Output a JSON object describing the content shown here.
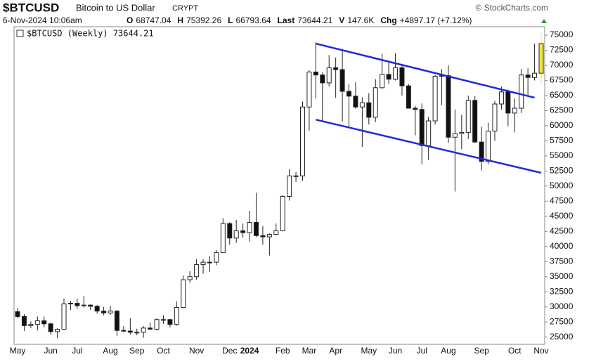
{
  "header": {
    "symbol": "$BTCUSD",
    "name": "Bitcoin to US Dollar",
    "exchange": "CRYPT",
    "source": "© StockCharts.com",
    "date": "6-Nov-2024 10:06am",
    "quote": [
      {
        "label": "O",
        "value": "68747.04"
      },
      {
        "label": "H",
        "value": "75392.26"
      },
      {
        "label": "L",
        "value": "66793.64"
      },
      {
        "label": "Last",
        "value": "73644.21"
      },
      {
        "label": "V",
        "value": "147.6K"
      },
      {
        "label": "Chg",
        "value": "+4897.17 (+7.12%)"
      }
    ],
    "legend": "$BTCUSD (Weekly) 73644.21"
  },
  "chart_data": {
    "type": "candlestick",
    "categories": [
      "May",
      null,
      null,
      null,
      null,
      "Jun",
      null,
      null,
      null,
      "Jul",
      null,
      null,
      null,
      null,
      "Aug",
      null,
      null,
      null,
      "Sep",
      null,
      null,
      null,
      "Oct",
      null,
      null,
      null,
      null,
      "Nov",
      null,
      null,
      null,
      null,
      "Dec",
      null,
      null,
      "2024",
      null,
      null,
      null,
      null,
      "Feb",
      null,
      null,
      null,
      "Mar",
      null,
      null,
      null,
      "Apr",
      null,
      null,
      null,
      null,
      "May",
      null,
      null,
      null,
      "Jun",
      null,
      null,
      null,
      "Jul",
      null,
      null,
      null,
      "Aug",
      null,
      null,
      null,
      null,
      "Sep",
      null,
      null,
      null,
      null,
      "Oct",
      null,
      null,
      null,
      "Nov"
    ],
    "open": [
      29200,
      28400,
      26900,
      27100,
      27700,
      27200,
      25900,
      26300,
      30500,
      30600,
      30200,
      30300,
      30100,
      29300,
      29000,
      29300,
      26100,
      26000,
      25800,
      25800,
      26500,
      26300,
      27900,
      27900,
      27100,
      29900,
      34500,
      35000,
      37000,
      37400,
      37400,
      39000,
      43800,
      41400,
      42600,
      42300,
      44000,
      41800,
      41600,
      42000,
      42600,
      48300,
      51700,
      51700,
      63100,
      68900,
      68400,
      67100,
      69600,
      69300,
      65700,
      64900,
      63100,
      63800,
      61400,
      66300,
      68500,
      67700,
      69600,
      66600,
      62900,
      62700,
      56700,
      60800,
      68200,
      68300,
      58100,
      58700,
      58900,
      64200,
      57300,
      54100,
      59100,
      63600,
      65600,
      62100,
      62900,
      68400,
      68000,
      68700
    ],
    "high": [
      29800,
      28800,
      27600,
      28400,
      28400,
      27400,
      26500,
      31400,
      31000,
      31400,
      31800,
      30400,
      30300,
      30000,
      30200,
      29500,
      26800,
      28100,
      26400,
      26800,
      27400,
      28100,
      28600,
      28000,
      30900,
      35200,
      35900,
      37900,
      37900,
      38400,
      39400,
      44700,
      44000,
      44400,
      43800,
      45900,
      48900,
      43400,
      42200,
      43800,
      48500,
      52800,
      52300,
      64000,
      69200,
      73800,
      68800,
      71700,
      71300,
      72700,
      66900,
      67200,
      64700,
      65400,
      67700,
      71900,
      70600,
      72000,
      70100,
      66900,
      63300,
      63700,
      61500,
      68400,
      69400,
      70000,
      62700,
      61800,
      65000,
      64900,
      59800,
      60500,
      64100,
      66500,
      66000,
      64500,
      69400,
      69500,
      73600,
      75400
    ],
    "low": [
      28100,
      26000,
      26500,
      26100,
      26600,
      25400,
      24800,
      26200,
      29500,
      29700,
      29900,
      29500,
      28900,
      28600,
      28700,
      25200,
      25800,
      25400,
      25300,
      24900,
      26200,
      26100,
      27200,
      26600,
      26900,
      29800,
      34000,
      34500,
      35500,
      35800,
      36900,
      39000,
      40300,
      40600,
      41500,
      40800,
      41600,
      40300,
      38500,
      41900,
      42500,
      47600,
      50700,
      50900,
      59200,
      64500,
      60800,
      66500,
      64600,
      60700,
      59700,
      62800,
      56500,
      60200,
      60600,
      66100,
      66900,
      67500,
      65000,
      63400,
      58400,
      53600,
      54300,
      60200,
      63400,
      57200,
      49100,
      56100,
      57800,
      57200,
      52600,
      53600,
      57500,
      62700,
      59900,
      58900,
      62100,
      65100,
      67500,
      66800
    ],
    "close": [
      28400,
      26900,
      27100,
      27700,
      27200,
      25900,
      26300,
      30500,
      30600,
      30200,
      30300,
      30100,
      29300,
      29000,
      29300,
      26100,
      26000,
      25800,
      25800,
      26500,
      26300,
      27900,
      27900,
      27100,
      29900,
      34500,
      35000,
      37000,
      37400,
      37400,
      39000,
      43800,
      41400,
      42600,
      42300,
      44000,
      41800,
      41600,
      42000,
      42600,
      48300,
      51700,
      51700,
      63100,
      68900,
      68400,
      67100,
      69600,
      69300,
      65700,
      64900,
      63100,
      63800,
      61400,
      66300,
      68500,
      67700,
      69600,
      66600,
      62900,
      62700,
      56700,
      60800,
      68200,
      68300,
      58100,
      58700,
      58900,
      64200,
      57300,
      54100,
      59100,
      63600,
      65600,
      62100,
      62900,
      68400,
      68000,
      68700,
      73600
    ],
    "up_color": "#ffffff",
    "down_color": "#111111",
    "last_candle_color": "#f2e64a",
    "trendlines": [
      {
        "x": [
          45,
          78
        ],
        "y": [
          73600,
          64650
        ],
        "color": "#1d2bd6"
      },
      {
        "x": [
          45,
          79
        ],
        "y": [
          61000,
          52200
        ],
        "color": "#1d2bd6"
      }
    ],
    "ylim": [
      23800,
      76400
    ],
    "yticks": [
      25000,
      27500,
      30000,
      32500,
      35000,
      37500,
      40000,
      42500,
      45000,
      47500,
      50000,
      52500,
      55000,
      57500,
      60000,
      62500,
      65000,
      67500,
      70000,
      72500,
      75000
    ],
    "grid": false
  }
}
